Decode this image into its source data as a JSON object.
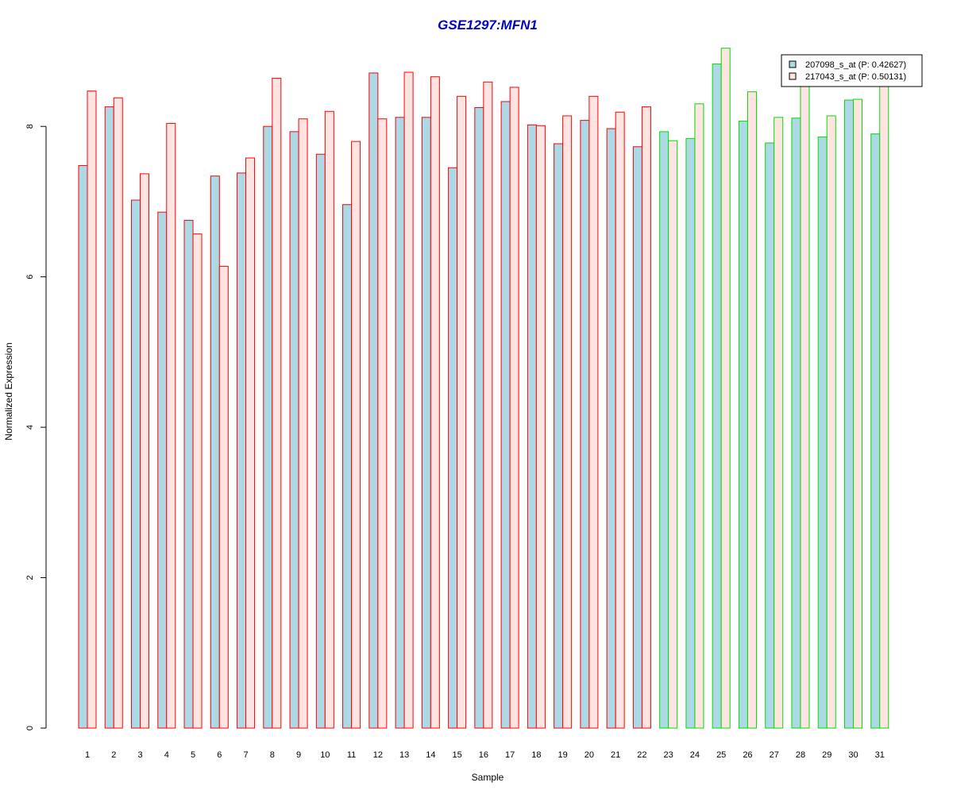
{
  "chart_data": {
    "type": "bar",
    "title": "GSE1297:MFN1",
    "xlabel": "Sample",
    "ylabel": "Normalized Expression",
    "ylim": [
      0,
      9.1
    ],
    "yticks": [
      0,
      2,
      4,
      6,
      8
    ],
    "categories": [
      "1",
      "2",
      "3",
      "4",
      "5",
      "6",
      "7",
      "8",
      "9",
      "10",
      "11",
      "12",
      "13",
      "14",
      "15",
      "16",
      "17",
      "18",
      "19",
      "20",
      "21",
      "22",
      "23",
      "24",
      "25",
      "26",
      "27",
      "28",
      "29",
      "30",
      "31"
    ],
    "series": [
      {
        "name": "207098_s_at (P: 0.42627)",
        "fill": "#add8e6",
        "values": [
          7.48,
          8.26,
          7.02,
          6.86,
          6.75,
          7.34,
          7.38,
          8.0,
          7.93,
          7.63,
          6.96,
          8.71,
          8.12,
          8.12,
          7.45,
          8.25,
          8.33,
          8.02,
          7.77,
          8.08,
          7.97,
          7.73,
          7.93,
          7.84,
          8.83,
          8.07,
          7.78,
          8.11,
          7.86,
          8.35,
          7.9
        ]
      },
      {
        "name": "217043_s_at (P: 0.50131)",
        "fill": "#ffe4e1",
        "values": [
          8.47,
          8.38,
          7.37,
          8.04,
          6.57,
          6.14,
          7.58,
          8.64,
          8.1,
          8.2,
          7.8,
          8.1,
          8.72,
          8.66,
          8.4,
          8.59,
          8.52,
          8.01,
          8.14,
          8.4,
          8.19,
          8.26,
          7.81,
          8.3,
          9.04,
          8.46,
          8.12,
          8.55,
          8.14,
          8.36,
          8.55
        ]
      }
    ],
    "groups": [
      {
        "from": 1,
        "to": 22,
        "border": "#ff0000"
      },
      {
        "from": 23,
        "to": 31,
        "border": "#00dd00"
      }
    ],
    "title_color": "#0000cc",
    "legend_position": "top-right",
    "grid": false
  }
}
